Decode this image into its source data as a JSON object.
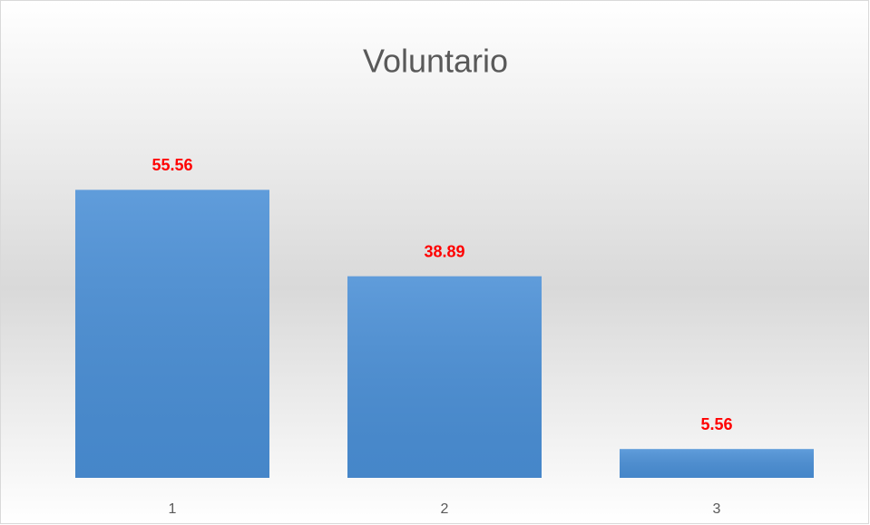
{
  "chart_data": {
    "type": "bar",
    "title": "Voluntario",
    "categories": [
      "1",
      "2",
      "3"
    ],
    "values": [
      55.56,
      38.89,
      5.56
    ],
    "color": "#4a8fd6",
    "label_color": "#ff0000",
    "ylim": [
      0,
      60
    ]
  }
}
